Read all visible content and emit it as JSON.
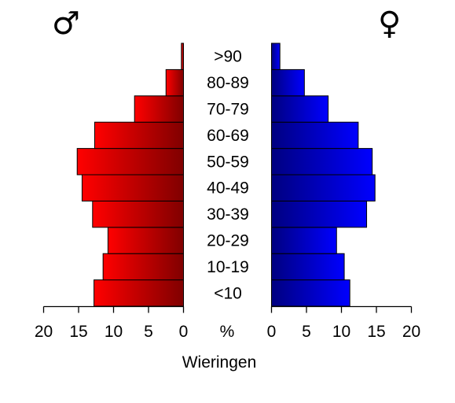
{
  "chart_data": {
    "type": "bar",
    "orientation": "horizontal",
    "layout": "population-pyramid",
    "title": "",
    "xlabel": "Wieringen",
    "center_tick_label": "%",
    "male_symbol": "♂",
    "female_symbol": "♀",
    "categories": [
      "<10",
      "10-19",
      "20-29",
      "30-39",
      "40-49",
      "50-59",
      "60-69",
      "70-79",
      "80-89",
      ">90"
    ],
    "series": [
      {
        "key": "male",
        "values": [
          12.8,
          11.5,
          10.8,
          13.0,
          14.5,
          15.2,
          12.7,
          7.0,
          2.5,
          0.3
        ],
        "color_from": "#ff0000",
        "color_to": "#800000"
      },
      {
        "key": "female",
        "values": [
          11.2,
          10.4,
          9.3,
          13.6,
          14.8,
          14.4,
          12.4,
          8.1,
          4.7,
          1.2
        ],
        "color_from": "#000080",
        "color_to": "#0000ff"
      }
    ],
    "xlim": [
      0,
      20
    ],
    "x_ticks": [
      0,
      5,
      10,
      15,
      20
    ],
    "male_tick_labels": [
      "20",
      "15",
      "10",
      "5",
      "0"
    ],
    "female_tick_labels": [
      "0",
      "5",
      "10",
      "15",
      "20"
    ],
    "grid": false,
    "legend": "none"
  }
}
